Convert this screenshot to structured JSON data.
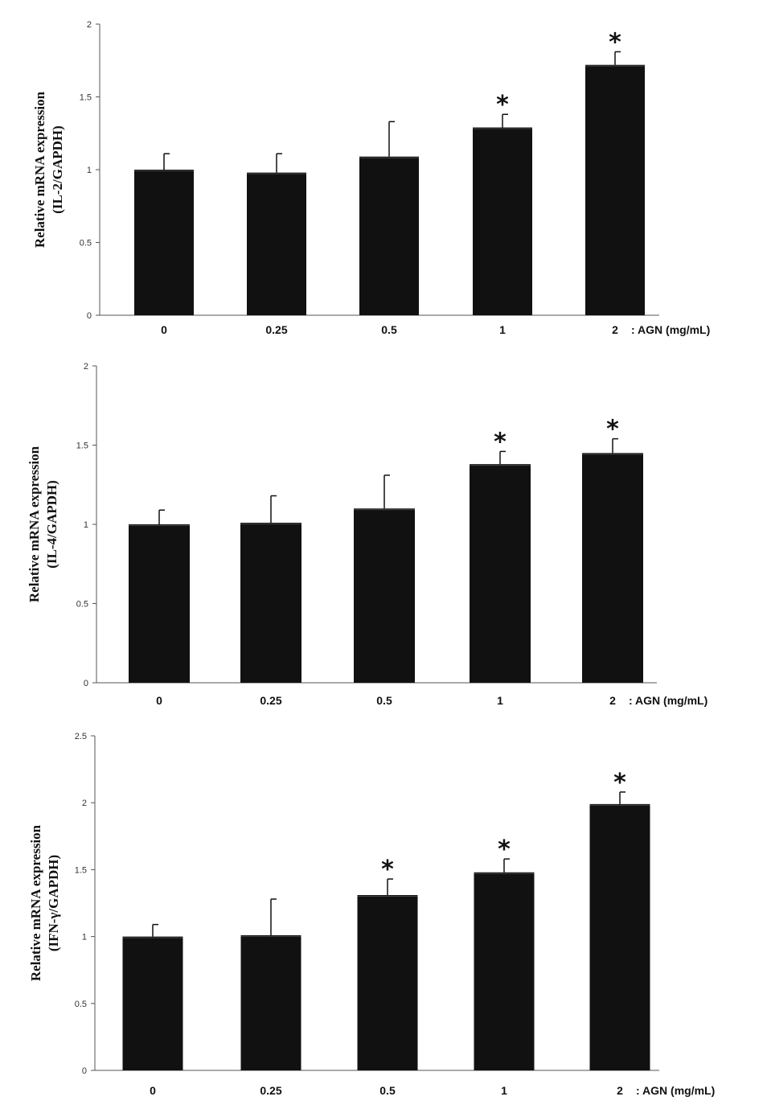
{
  "chart_data": [
    {
      "type": "bar",
      "title": "",
      "ylabel_line1": "Relative mRNA expression",
      "ylabel_line2": "(IL-2/GAPDH)",
      "xlabel": ": AGN (mg/mL)",
      "categories": [
        "0",
        "0.25",
        "0.5",
        "1",
        "2"
      ],
      "values": [
        1.0,
        0.98,
        1.09,
        1.29,
        1.72
      ],
      "errors": [
        0.11,
        0.13,
        0.24,
        0.09,
        0.09
      ],
      "significant": [
        false,
        false,
        false,
        true,
        true
      ],
      "significance_marker": "*",
      "ylim": [
        0,
        2
      ],
      "yticks": [
        0,
        0.5,
        1,
        1.5,
        2
      ],
      "ytick_labels": [
        "0",
        "0.5",
        "1",
        "1.5",
        "2"
      ],
      "bar_color": "#111111"
    },
    {
      "type": "bar",
      "title": "",
      "ylabel_line1": "Relative mRNA expression",
      "ylabel_line2": "(IL-4/GAPDH)",
      "xlabel": ": AGN (mg/mL)",
      "categories": [
        "0",
        "0.25",
        "0.5",
        "1",
        "2"
      ],
      "values": [
        1.0,
        1.01,
        1.1,
        1.38,
        1.45
      ],
      "errors": [
        0.09,
        0.17,
        0.21,
        0.08,
        0.09
      ],
      "significant": [
        false,
        false,
        false,
        true,
        true
      ],
      "significance_marker": "*",
      "ylim": [
        0,
        2
      ],
      "yticks": [
        0,
        0.5,
        1,
        1.5,
        2
      ],
      "ytick_labels": [
        "0",
        "0.5",
        "1",
        "1.5",
        "2"
      ],
      "bar_color": "#111111"
    },
    {
      "type": "bar",
      "title": "",
      "ylabel_line1": "Relative mRNA expression",
      "ylabel_line2": "(IFN-γ/GAPDH)",
      "xlabel": ": AGN (mg/mL)",
      "categories": [
        "0",
        "0.25",
        "0.5",
        "1",
        "2"
      ],
      "values": [
        1.0,
        1.01,
        1.31,
        1.48,
        1.99
      ],
      "errors": [
        0.09,
        0.27,
        0.12,
        0.1,
        0.09
      ],
      "significant": [
        false,
        false,
        true,
        true,
        true
      ],
      "significance_marker": "*",
      "ylim": [
        0,
        2.5
      ],
      "yticks": [
        0,
        0.5,
        1,
        1.5,
        2,
        2.5
      ],
      "ytick_labels": [
        "0",
        "0.5",
        "1",
        "1.5",
        "2",
        "2.5"
      ],
      "bar_color": "#111111"
    }
  ]
}
